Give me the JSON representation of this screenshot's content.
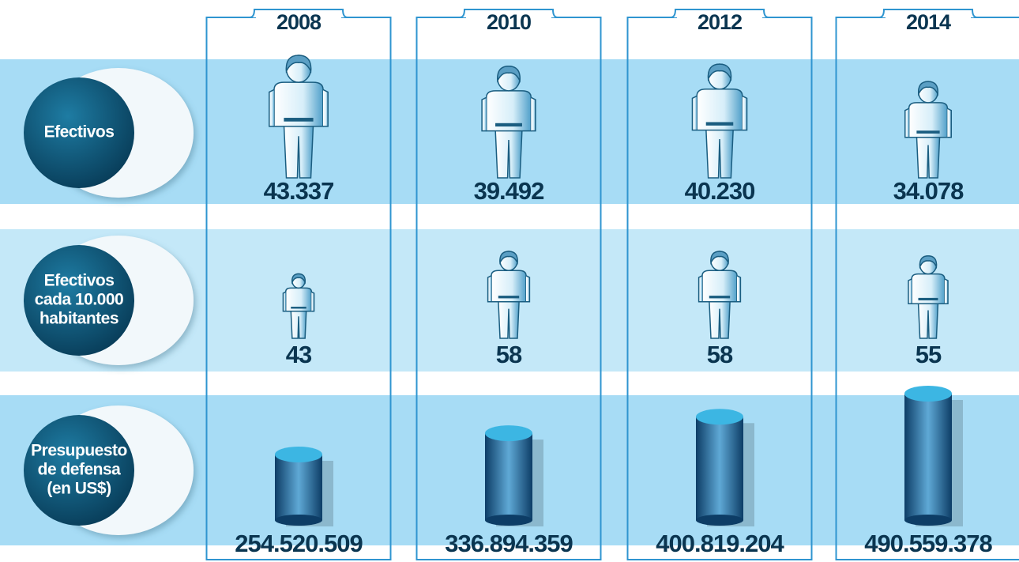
{
  "years": [
    "2008",
    "2010",
    "2012",
    "2014"
  ],
  "rows": [
    {
      "label": [
        "Efectivos"
      ],
      "icon": "person",
      "values": [
        43337,
        39492,
        40230,
        34078
      ],
      "value_labels": [
        "43.337",
        "39.492",
        "40.230",
        "34.078"
      ]
    },
    {
      "label": [
        "Efectivos",
        "cada 10.000",
        "habitantes"
      ],
      "icon": "person",
      "values": [
        43,
        58,
        58,
        55
      ]
    },
    {
      "label": [
        "Presupuesto",
        "de defensa",
        "(en US$)"
      ],
      "icon": "cylinder",
      "values": [
        254520509,
        336894359,
        400819204,
        490559378
      ],
      "value_labels": [
        "254.520.509",
        "336.894.359",
        "400.819.204",
        "490.559.378"
      ]
    }
  ]
}
